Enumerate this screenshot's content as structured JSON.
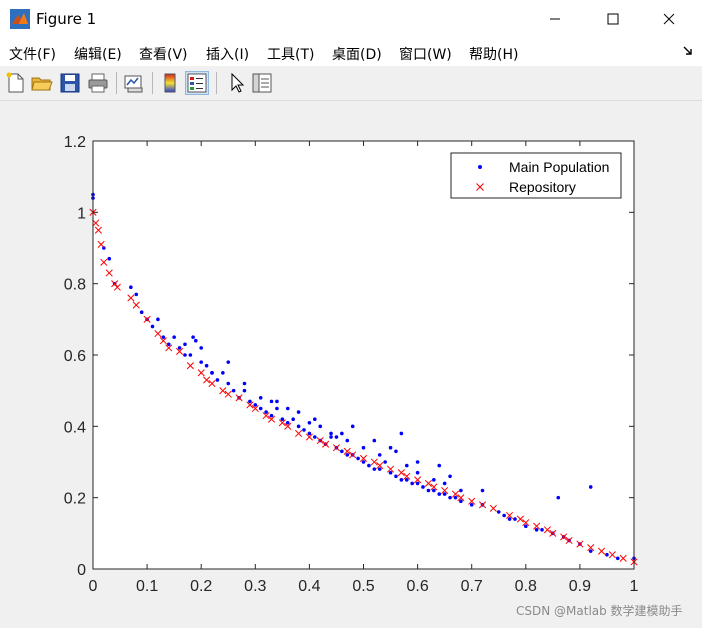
{
  "window": {
    "title": "Figure 1",
    "controls": [
      "minimize",
      "maximize",
      "close"
    ]
  },
  "menubar": {
    "items": [
      {
        "label": "文件(F)"
      },
      {
        "label": "编辑(E)"
      },
      {
        "label": "查看(V)"
      },
      {
        "label": "插入(I)"
      },
      {
        "label": "工具(T)"
      },
      {
        "label": "桌面(D)"
      },
      {
        "label": "窗口(W)"
      },
      {
        "label": "帮助(H)"
      }
    ]
  },
  "toolbar": {
    "icons": [
      "new-file-icon",
      "open-folder-icon",
      "save-icon",
      "print-icon",
      "link-plot-icon",
      "colorbar-icon",
      "legend-icon",
      "pointer-icon",
      "property-inspector-icon"
    ]
  },
  "colors": {
    "main_population": "#0000ff",
    "repository": "#ff0000",
    "background": "#f0f0f0"
  },
  "watermark": "CSDN @Matlab 数学建模助手",
  "chart_data": {
    "type": "scatter",
    "title": "",
    "xlabel": "",
    "ylabel": "",
    "xlim": [
      0,
      1
    ],
    "ylim": [
      0,
      1.2
    ],
    "xticks": [
      "0",
      "0.1",
      "0.2",
      "0.3",
      "0.4",
      "0.5",
      "0.6",
      "0.7",
      "0.8",
      "0.9",
      "1"
    ],
    "yticks": [
      "0",
      "0.2",
      "0.4",
      "0.6",
      "0.8",
      "1",
      "1.2"
    ],
    "legend": {
      "position": "top-right",
      "entries": [
        "Main Population",
        "Repository"
      ]
    },
    "series": [
      {
        "name": "Main Population",
        "marker": "dot",
        "x": [
          0.0,
          0.0,
          0.02,
          0.03,
          0.04,
          0.07,
          0.08,
          0.09,
          0.1,
          0.11,
          0.12,
          0.13,
          0.14,
          0.15,
          0.16,
          0.17,
          0.18,
          0.185,
          0.19,
          0.2,
          0.2,
          0.21,
          0.22,
          0.23,
          0.24,
          0.25,
          0.26,
          0.27,
          0.28,
          0.29,
          0.3,
          0.31,
          0.32,
          0.33,
          0.34,
          0.35,
          0.36,
          0.37,
          0.38,
          0.39,
          0.4,
          0.41,
          0.42,
          0.43,
          0.44,
          0.45,
          0.46,
          0.47,
          0.48,
          0.49,
          0.5,
          0.51,
          0.52,
          0.53,
          0.54,
          0.55,
          0.56,
          0.57,
          0.58,
          0.59,
          0.6,
          0.61,
          0.62,
          0.63,
          0.64,
          0.65,
          0.66,
          0.67,
          0.68,
          0.7,
          0.72,
          0.75,
          0.76,
          0.77,
          0.78,
          0.8,
          0.82,
          0.83,
          0.85,
          0.87,
          0.88,
          0.9,
          0.92,
          0.95,
          0.97,
          1.0,
          0.17,
          0.22,
          0.25,
          0.28,
          0.31,
          0.34,
          0.36,
          0.38,
          0.41,
          0.44,
          0.47,
          0.5,
          0.53,
          0.55,
          0.58,
          0.6,
          0.63,
          0.65,
          0.68,
          0.56,
          0.6,
          0.64,
          0.66,
          0.72,
          0.86,
          0.92,
          0.33,
          0.4,
          0.42,
          0.46,
          0.48,
          0.52,
          0.45,
          0.57
        ],
        "y": [
          1.05,
          1.04,
          0.9,
          0.87,
          0.8,
          0.79,
          0.77,
          0.72,
          0.7,
          0.68,
          0.7,
          0.65,
          0.63,
          0.65,
          0.62,
          0.63,
          0.6,
          0.65,
          0.64,
          0.62,
          0.58,
          0.57,
          0.55,
          0.53,
          0.55,
          0.52,
          0.5,
          0.48,
          0.5,
          0.47,
          0.46,
          0.45,
          0.44,
          0.43,
          0.45,
          0.42,
          0.41,
          0.42,
          0.4,
          0.39,
          0.38,
          0.37,
          0.36,
          0.35,
          0.37,
          0.34,
          0.33,
          0.32,
          0.32,
          0.31,
          0.3,
          0.29,
          0.28,
          0.28,
          0.3,
          0.27,
          0.26,
          0.25,
          0.25,
          0.24,
          0.24,
          0.23,
          0.22,
          0.22,
          0.21,
          0.21,
          0.2,
          0.2,
          0.19,
          0.18,
          0.18,
          0.16,
          0.15,
          0.14,
          0.14,
          0.12,
          0.11,
          0.11,
          0.1,
          0.09,
          0.08,
          0.07,
          0.05,
          0.04,
          0.03,
          0.03,
          0.6,
          0.55,
          0.58,
          0.52,
          0.48,
          0.47,
          0.45,
          0.44,
          0.42,
          0.38,
          0.36,
          0.34,
          0.32,
          0.34,
          0.29,
          0.27,
          0.25,
          0.24,
          0.22,
          0.33,
          0.3,
          0.29,
          0.26,
          0.22,
          0.2,
          0.23,
          0.47,
          0.41,
          0.4,
          0.38,
          0.4,
          0.36,
          0.37,
          0.38
        ]
      },
      {
        "name": "Repository",
        "marker": "x",
        "x": [
          0.0,
          0.005,
          0.01,
          0.015,
          0.02,
          0.03,
          0.04,
          0.045,
          0.07,
          0.08,
          0.1,
          0.12,
          0.13,
          0.14,
          0.16,
          0.18,
          0.2,
          0.21,
          0.22,
          0.24,
          0.25,
          0.27,
          0.29,
          0.3,
          0.32,
          0.33,
          0.35,
          0.36,
          0.38,
          0.4,
          0.42,
          0.43,
          0.45,
          0.47,
          0.48,
          0.5,
          0.52,
          0.53,
          0.55,
          0.57,
          0.58,
          0.6,
          0.62,
          0.63,
          0.65,
          0.67,
          0.68,
          0.7,
          0.72,
          0.74,
          0.77,
          0.79,
          0.8,
          0.82,
          0.84,
          0.85,
          0.87,
          0.88,
          0.9,
          0.92,
          0.94,
          0.96,
          0.98,
          1.0
        ],
        "y": [
          1.0,
          0.97,
          0.95,
          0.91,
          0.86,
          0.83,
          0.8,
          0.79,
          0.76,
          0.74,
          0.7,
          0.66,
          0.64,
          0.62,
          0.61,
          0.57,
          0.55,
          0.53,
          0.52,
          0.5,
          0.49,
          0.48,
          0.46,
          0.45,
          0.43,
          0.42,
          0.41,
          0.4,
          0.38,
          0.37,
          0.36,
          0.35,
          0.34,
          0.33,
          0.32,
          0.31,
          0.3,
          0.29,
          0.28,
          0.27,
          0.26,
          0.25,
          0.24,
          0.23,
          0.22,
          0.21,
          0.2,
          0.19,
          0.18,
          0.17,
          0.15,
          0.14,
          0.13,
          0.12,
          0.11,
          0.1,
          0.09,
          0.08,
          0.07,
          0.06,
          0.05,
          0.04,
          0.03,
          0.02
        ]
      }
    ]
  }
}
